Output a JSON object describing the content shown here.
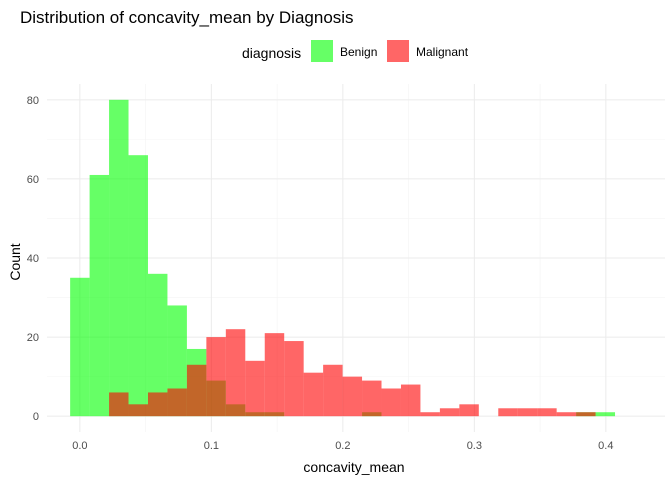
{
  "chart_data": {
    "type": "histogram",
    "title": "Distribution of concavity_mean by Diagnosis",
    "xlabel": "concavity_mean",
    "ylabel": "Count",
    "xlim": [
      -0.025,
      0.445
    ],
    "ylim": [
      -4,
      84
    ],
    "x_ticks": [
      0.0,
      0.1,
      0.2,
      0.3,
      0.4
    ],
    "x_tick_labels": [
      "0.0",
      "0.1",
      "0.2",
      "0.3",
      "0.4"
    ],
    "y_ticks": [
      0,
      20,
      40,
      60,
      80
    ],
    "y_tick_labels": [
      "0",
      "20",
      "40",
      "60",
      "80"
    ],
    "grid": true,
    "legend": {
      "title": "diagnosis",
      "position": "top"
    },
    "bin_width": 0.0148,
    "bin_start": -0.0074,
    "series": [
      {
        "name": "Benign",
        "color": "#00FF00",
        "opacity": 0.6,
        "counts": [
          35,
          61,
          80,
          66,
          36,
          28,
          17,
          9,
          3,
          1,
          1,
          0,
          0,
          0,
          0,
          1,
          0,
          0,
          0,
          0,
          0,
          0,
          0,
          0,
          0,
          0,
          1,
          1,
          0,
          0,
          0,
          0,
          0,
          0,
          0,
          0,
          0,
          0,
          0,
          0,
          0,
          1,
          0,
          0
        ]
      },
      {
        "name": "Malignant",
        "color": "#FF0000",
        "opacity": 0.6,
        "counts": [
          0,
          0,
          6,
          3,
          6,
          7,
          13,
          20,
          22,
          14,
          21,
          19,
          11,
          13,
          10,
          9,
          7,
          8,
          1,
          2,
          3,
          0,
          2,
          2,
          2,
          1,
          1,
          0,
          0,
          0,
          0,
          0,
          0,
          0,
          0,
          0,
          0,
          0,
          0,
          0,
          0,
          0,
          2,
          0
        ]
      }
    ]
  }
}
